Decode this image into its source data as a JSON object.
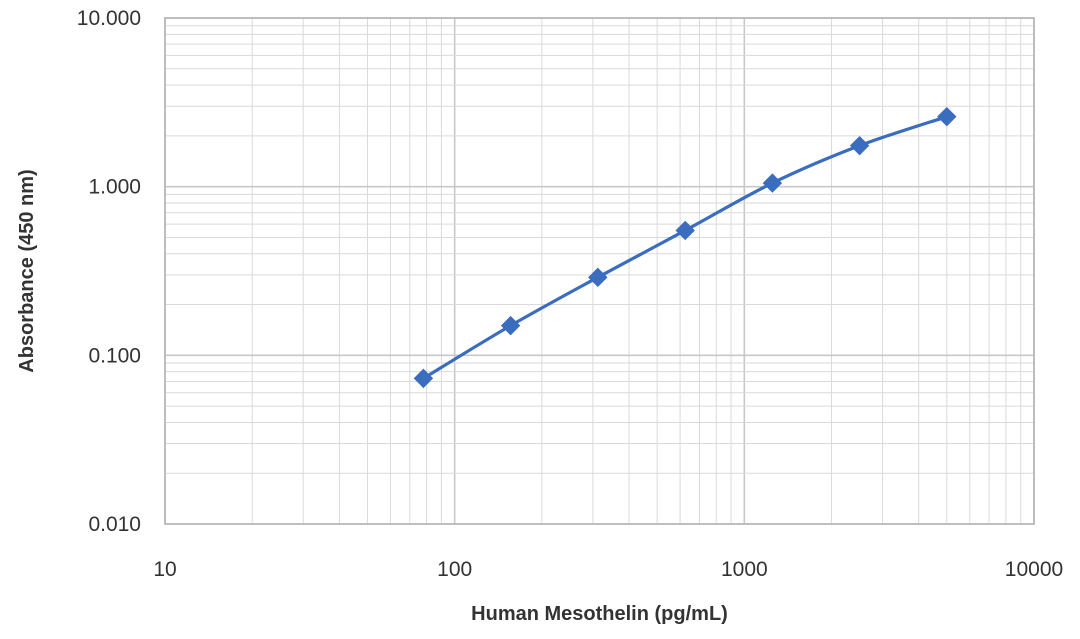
{
  "chart_data": {
    "type": "line",
    "title": "",
    "xlabel": "Human Mesothelin (pg/mL)",
    "ylabel": "Absorbance (450 nm)",
    "x_scale": "log",
    "y_scale": "log",
    "xlim": [
      10,
      10000
    ],
    "ylim": [
      0.01,
      10
    ],
    "grid": true,
    "legend": "none",
    "x_tick_labels": [
      "10",
      "100",
      "1000",
      "10000"
    ],
    "y_tick_labels": [
      "0.010",
      "0.100",
      "1.000",
      "10.000"
    ],
    "series": [
      {
        "color": "#3a6cc0",
        "marker": "diamond",
        "x": [
          78,
          156,
          312,
          625,
          1250,
          2500,
          5000
        ],
        "y": [
          0.073,
          0.15,
          0.29,
          0.55,
          1.05,
          1.75,
          2.6
        ]
      }
    ]
  }
}
